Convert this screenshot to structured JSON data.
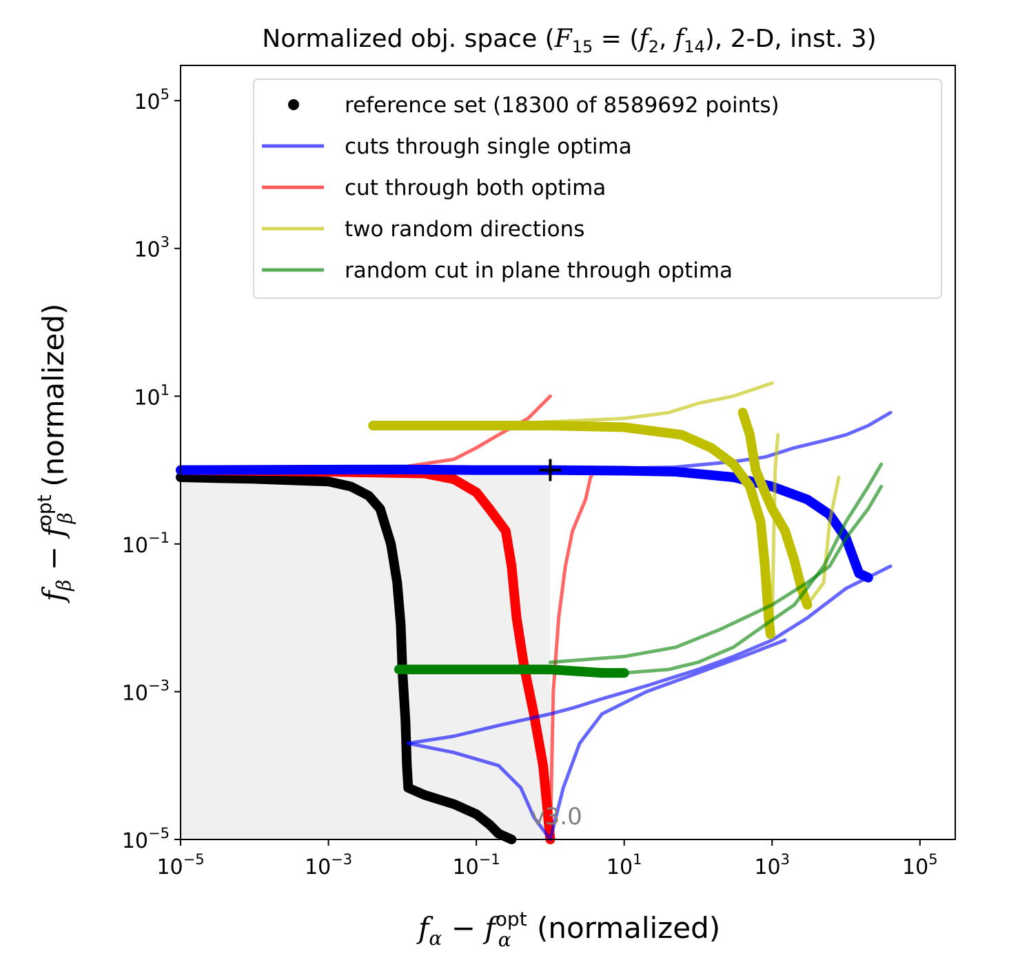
{
  "chart_data": {
    "type": "line",
    "title": "Normalized obj. space (F15 = (f2, f14), 2-D, inst. 3)",
    "title_parts": {
      "prefix": "Normalized obj. space (",
      "F": "F",
      "F_sub": "15",
      "eq": " = (",
      "f1": "f",
      "f1_sub": "2",
      "comma": ", ",
      "f2": "f",
      "f2_sub": "14",
      "suffix": "), 2-D, inst. 3)"
    },
    "xlabel": "f_α − f_α^opt (normalized)",
    "ylabel": "f_β − f_β^opt (normalized)",
    "xlabel_parts": {
      "f": "f",
      "sub": "α",
      "minus": " − ",
      "f2": "f",
      "sup": "opt",
      "sub2": "α",
      "rest": " (normalized)"
    },
    "ylabel_parts": {
      "f": "f",
      "sub": "β",
      "minus": " − ",
      "f2": "f",
      "sup": "opt",
      "sub2": "β",
      "rest": " (normalized)"
    },
    "xscale": "log",
    "yscale": "log",
    "xlim": [
      1e-05,
      300000.0
    ],
    "ylim": [
      1e-05,
      300000.0
    ],
    "xticks": [
      {
        "value": 1e-05,
        "base": "10",
        "exp": "−5"
      },
      {
        "value": 0.001,
        "base": "10",
        "exp": "−3"
      },
      {
        "value": 0.1,
        "base": "10",
        "exp": "−1"
      },
      {
        "value": 10,
        "base": "10",
        "exp": "1"
      },
      {
        "value": 1000,
        "base": "10",
        "exp": "3"
      },
      {
        "value": 100000,
        "base": "10",
        "exp": "5"
      }
    ],
    "yticks": [
      {
        "value": 1e-05,
        "base": "10",
        "exp": "−5"
      },
      {
        "value": 0.001,
        "base": "10",
        "exp": "−3"
      },
      {
        "value": 0.1,
        "base": "10",
        "exp": "−1"
      },
      {
        "value": 10,
        "base": "10",
        "exp": "1"
      },
      {
        "value": 1000,
        "base": "10",
        "exp": "3"
      },
      {
        "value": 100000,
        "base": "10",
        "exp": "5"
      }
    ],
    "legend": {
      "position": "top-right",
      "entries": [
        {
          "label": "reference set (18300 of 8589692 points)",
          "color": "#000000",
          "marker": "dot"
        },
        {
          "label": "cuts through single optima",
          "color": "#0000ff",
          "marker": "line"
        },
        {
          "label": "cut through both optima",
          "color": "#ff0000",
          "marker": "line"
        },
        {
          "label": "two random directions",
          "color": "#bfbf00",
          "marker": "line"
        },
        {
          "label": "random cut in plane through optima",
          "color": "#008000",
          "marker": "line"
        }
      ]
    },
    "annotation": "v3.0",
    "nadir_marker": {
      "x": 1,
      "y": 1
    },
    "series": [
      {
        "name": "reference set (18300 of 8589692 points)",
        "color": "#000000",
        "style": "thick",
        "points": [
          [
            1e-05,
            0.8
          ],
          [
            3e-05,
            0.78
          ],
          [
            0.0001,
            0.76
          ],
          [
            0.001,
            0.7
          ],
          [
            0.002,
            0.6
          ],
          [
            0.0035,
            0.45
          ],
          [
            0.005,
            0.3
          ],
          [
            0.007,
            0.1
          ],
          [
            0.0085,
            0.03
          ],
          [
            0.0095,
            0.008
          ],
          [
            0.01,
            0.002
          ],
          [
            0.011,
            0.0004
          ],
          [
            0.0115,
            0.0001
          ],
          [
            0.012,
            5e-05
          ],
          [
            0.02,
            4e-05
          ],
          [
            0.05,
            3e-05
          ],
          [
            0.1,
            2.2e-05
          ],
          [
            0.15,
            1.6e-05
          ],
          [
            0.2,
            1.2e-05
          ],
          [
            0.3,
            1e-05
          ]
        ]
      },
      {
        "name": "cut through both optima",
        "color": "#ff0000",
        "style": "thick",
        "points": [
          [
            1e-05,
            1
          ],
          [
            0.001,
            0.95
          ],
          [
            0.02,
            0.9
          ],
          [
            0.05,
            0.75
          ],
          [
            0.1,
            0.5
          ],
          [
            0.15,
            0.3
          ],
          [
            0.25,
            0.15
          ],
          [
            0.3,
            0.05
          ],
          [
            0.35,
            0.01
          ],
          [
            0.45,
            0.002
          ],
          [
            0.6,
            0.0005
          ],
          [
            0.8,
            0.0001
          ],
          [
            0.9,
            3e-05
          ],
          [
            1,
            1e-05
          ]
        ]
      },
      {
        "name": "cut through both optima (thin)",
        "color": "#ff0000",
        "style": "thin",
        "points": [
          [
            1e-05,
            1
          ],
          [
            0.01,
            1.1
          ],
          [
            0.05,
            1.4
          ],
          [
            0.1,
            2
          ],
          [
            0.2,
            3
          ],
          [
            0.5,
            5
          ],
          [
            0.7,
            7
          ],
          [
            1,
            10
          ]
        ]
      },
      {
        "name": "cut through both optima (thin, vertical)",
        "color": "#ff0000",
        "style": "thin",
        "points": [
          [
            1,
            1e-05
          ],
          [
            1.1,
            0.001
          ],
          [
            1.3,
            0.01
          ],
          [
            1.6,
            0.05
          ],
          [
            2,
            0.15
          ],
          [
            3,
            0.4
          ],
          [
            3.5,
            0.8
          ],
          [
            4,
            1
          ]
        ]
      },
      {
        "name": "cuts through single optima (horizontal)",
        "color": "#0000ff",
        "style": "thick",
        "points": [
          [
            1e-05,
            1
          ],
          [
            0.01,
            1.02
          ],
          [
            0.1,
            1.0
          ],
          [
            1,
            1
          ],
          [
            10,
            0.98
          ],
          [
            50,
            0.95
          ],
          [
            300,
            0.8
          ],
          [
            1000,
            0.6
          ],
          [
            3000,
            0.4
          ],
          [
            6000,
            0.25
          ],
          [
            10000,
            0.12
          ],
          [
            15000,
            0.04
          ],
          [
            20000,
            0.035
          ]
        ]
      },
      {
        "name": "cuts through single optima (upper)",
        "color": "#0000ff",
        "style": "thin",
        "points": [
          [
            1e-05,
            1
          ],
          [
            1,
            1
          ],
          [
            50,
            1.1
          ],
          [
            300,
            1.3
          ],
          [
            800,
            1.5
          ],
          [
            2000,
            2
          ],
          [
            5000,
            2.5
          ],
          [
            10000,
            3
          ],
          [
            20000,
            4
          ],
          [
            40000,
            6
          ]
        ]
      },
      {
        "name": "cuts through single optima (lower)",
        "color": "#0000ff",
        "style": "thin",
        "points": [
          [
            0.012,
            0.0002
          ],
          [
            0.05,
            0.00025
          ],
          [
            0.2,
            0.00035
          ],
          [
            1,
            0.0005
          ],
          [
            2,
            0.0006
          ],
          [
            5,
            0.0008
          ],
          [
            20,
            0.0012
          ],
          [
            100,
            0.002
          ],
          [
            300,
            0.003
          ],
          [
            1000,
            0.005
          ],
          [
            3000,
            0.01
          ],
          [
            10000,
            0.025
          ],
          [
            40000,
            0.05
          ]
        ]
      },
      {
        "name": "cuts through single optima (curve down)",
        "color": "#0000ff",
        "style": "thin",
        "points": [
          [
            0.012,
            0.0002
          ],
          [
            0.05,
            0.00015
          ],
          [
            0.2,
            0.0001
          ],
          [
            0.4,
            5e-05
          ],
          [
            0.6,
            2e-05
          ],
          [
            1,
            1e-05
          ],
          [
            1.5,
            5e-05
          ],
          [
            2.5,
            0.0002
          ],
          [
            5,
            0.0005
          ],
          [
            20,
            0.001
          ],
          [
            100,
            0.0018
          ],
          [
            400,
            0.003
          ],
          [
            1500,
            0.005
          ]
        ]
      },
      {
        "name": "two random directions",
        "color": "#bfbf00",
        "style": "thick",
        "points": [
          [
            0.004,
            4
          ],
          [
            0.05,
            4
          ],
          [
            1,
            4
          ],
          [
            10,
            3.8
          ],
          [
            60,
            3
          ],
          [
            150,
            2
          ],
          [
            300,
            1.2
          ],
          [
            500,
            0.6
          ],
          [
            700,
            0.2
          ],
          [
            800,
            0.05
          ],
          [
            900,
            0.01
          ],
          [
            950,
            0.006
          ]
        ]
      },
      {
        "name": "two random directions (second)",
        "color": "#bfbf00",
        "style": "thick",
        "points": [
          [
            400,
            6
          ],
          [
            500,
            3
          ],
          [
            600,
            1
          ],
          [
            800,
            0.5
          ],
          [
            1000,
            0.3
          ],
          [
            1500,
            0.15
          ],
          [
            2000,
            0.06
          ],
          [
            2500,
            0.025
          ],
          [
            3000,
            0.015
          ]
        ]
      },
      {
        "name": "two random directions (thin)",
        "color": "#bfbf00",
        "style": "thin",
        "points": [
          [
            0.04,
            4
          ],
          [
            1,
            4.5
          ],
          [
            10,
            5
          ],
          [
            40,
            6
          ],
          [
            100,
            8
          ],
          [
            300,
            10
          ],
          [
            1000,
            15
          ]
        ]
      },
      {
        "name": "two random directions (thin, right)",
        "color": "#bfbf00",
        "style": "thin",
        "points": [
          [
            1000,
            0.008
          ],
          [
            1050,
            0.1
          ],
          [
            1100,
            1
          ],
          [
            1200,
            3
          ]
        ]
      },
      {
        "name": "two random directions (thin, far right)",
        "color": "#bfbf00",
        "style": "thin",
        "points": [
          [
            3000,
            0.015
          ],
          [
            5000,
            0.03
          ],
          [
            6000,
            0.2
          ],
          [
            8000,
            0.8
          ]
        ]
      },
      {
        "name": "random cut in plane through optima",
        "color": "#008000",
        "style": "thick",
        "points": [
          [
            0.009,
            0.002
          ],
          [
            0.1,
            0.002
          ],
          [
            1,
            0.002
          ],
          [
            5,
            0.0018
          ],
          [
            10,
            0.0018
          ]
        ]
      },
      {
        "name": "random cut in plane through optima (thin)",
        "color": "#008000",
        "style": "thin",
        "points": [
          [
            10,
            0.0018
          ],
          [
            40,
            0.002
          ],
          [
            100,
            0.0025
          ],
          [
            300,
            0.004
          ],
          [
            800,
            0.008
          ],
          [
            2000,
            0.015
          ],
          [
            5000,
            0.05
          ],
          [
            10000,
            0.2
          ],
          [
            20000,
            0.6
          ],
          [
            30000,
            1.2
          ]
        ]
      },
      {
        "name": "random cut in plane through optima (thin, second)",
        "color": "#008000",
        "style": "thin",
        "points": [
          [
            1,
            0.0025
          ],
          [
            10,
            0.003
          ],
          [
            50,
            0.004
          ],
          [
            200,
            0.007
          ],
          [
            1000,
            0.015
          ],
          [
            3000,
            0.03
          ],
          [
            6000,
            0.05
          ],
          [
            10000,
            0.12
          ],
          [
            20000,
            0.3
          ],
          [
            30000,
            0.6
          ]
        ]
      }
    ]
  }
}
